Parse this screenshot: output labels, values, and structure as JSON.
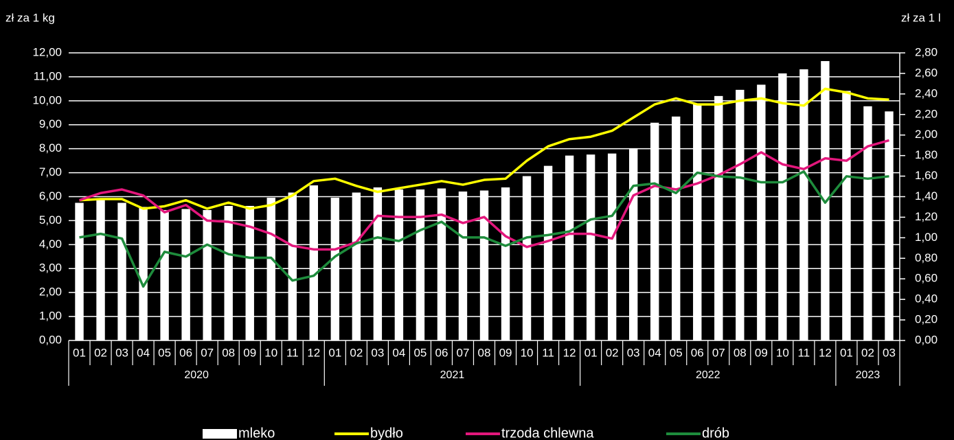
{
  "chart_data": {
    "type": "bar",
    "y_label": "zł za 1 kg",
    "y2_label": "zł za 1 l",
    "categories": [
      "01",
      "02",
      "03",
      "04",
      "05",
      "06",
      "07",
      "08",
      "09",
      "10",
      "11",
      "12",
      "01",
      "02",
      "03",
      "04",
      "05",
      "06",
      "07",
      "08",
      "09",
      "10",
      "11",
      "12",
      "01",
      "02",
      "03",
      "04",
      "05",
      "06",
      "07",
      "08",
      "09",
      "10",
      "11",
      "12",
      "01",
      "02",
      "03"
    ],
    "x_groups": [
      "2020",
      "2021",
      "2022",
      "2023"
    ],
    "ylim": [
      0,
      12
    ],
    "yticks": [
      {
        "value": 0,
        "label": "0,00"
      },
      {
        "value": 1,
        "label": "1,00"
      },
      {
        "value": 2,
        "label": "2,00"
      },
      {
        "value": 3,
        "label": "3,00"
      },
      {
        "value": 4,
        "label": "4,00"
      },
      {
        "value": 5,
        "label": "5,00"
      },
      {
        "value": 6,
        "label": "6,00"
      },
      {
        "value": 7,
        "label": "7,00"
      },
      {
        "value": 8,
        "label": "8,00"
      },
      {
        "value": 9,
        "label": "9,00"
      },
      {
        "value": 10,
        "label": "10,00"
      },
      {
        "value": 11,
        "label": "11,00"
      },
      {
        "value": 12,
        "label": "12,00"
      }
    ],
    "y2lim": [
      0,
      2.8
    ],
    "y2ticks": [
      {
        "value": 0,
        "label": "0,00"
      },
      {
        "value": 0.2,
        "label": "0,20"
      },
      {
        "value": 0.4,
        "label": "0,40"
      },
      {
        "value": 0.6,
        "label": "0,60"
      },
      {
        "value": 0.8,
        "label": "0,80"
      },
      {
        "value": 1,
        "label": "1,00"
      },
      {
        "value": 1.2,
        "label": "1,20"
      },
      {
        "value": 1.4,
        "label": "1,40"
      },
      {
        "value": 1.6,
        "label": "1,60"
      },
      {
        "value": 1.8,
        "label": "1,80"
      },
      {
        "value": 2,
        "label": "2,00"
      },
      {
        "value": 2.2,
        "label": "2,20"
      },
      {
        "value": 2.4,
        "label": "2,40"
      },
      {
        "value": 2.6,
        "label": "2,60"
      },
      {
        "value": 2.8,
        "label": "2,80"
      }
    ],
    "grid": true,
    "series": [
      {
        "name": "mleko",
        "type": "bar",
        "axis": "y2",
        "color": "#ffffff",
        "values": [
          1.34,
          1.38,
          1.34,
          1.3,
          1.27,
          1.28,
          1.27,
          1.31,
          1.31,
          1.39,
          1.44,
          1.51,
          1.39,
          1.44,
          1.49,
          1.47,
          1.47,
          1.48,
          1.45,
          1.46,
          1.49,
          1.6,
          1.7,
          1.8,
          1.81,
          1.82,
          1.87,
          2.12,
          2.18,
          2.3,
          2.38,
          2.44,
          2.49,
          2.6,
          2.64,
          2.72,
          2.43,
          2.28,
          2.23
        ]
      },
      {
        "name": "bydło",
        "type": "line",
        "color": "#ffff00",
        "values": [
          5.85,
          5.9,
          5.9,
          5.5,
          5.6,
          5.85,
          5.5,
          5.75,
          5.5,
          5.65,
          6.05,
          6.65,
          6.75,
          6.45,
          6.2,
          6.35,
          6.5,
          6.65,
          6.5,
          6.7,
          6.75,
          7.5,
          8.1,
          8.4,
          8.5,
          8.75,
          9.3,
          9.85,
          10.1,
          9.85,
          9.85,
          10.0,
          10.1,
          9.9,
          9.8,
          10.5,
          10.35,
          10.1,
          10.05
        ]
      },
      {
        "name": "trzoda chlewna",
        "type": "line",
        "color": "#e3177c",
        "values": [
          5.85,
          6.15,
          6.3,
          6.05,
          5.35,
          5.65,
          5.0,
          4.95,
          4.75,
          4.45,
          3.95,
          3.8,
          3.8,
          4.1,
          5.2,
          5.15,
          5.15,
          5.25,
          4.9,
          5.15,
          4.35,
          3.9,
          4.15,
          4.45,
          4.45,
          4.25,
          6.05,
          6.45,
          6.3,
          6.55,
          6.9,
          7.35,
          7.85,
          7.35,
          7.15,
          7.6,
          7.5,
          8.1,
          8.35
        ]
      },
      {
        "name": "drób",
        "type": "line",
        "color": "#1e8c3c",
        "values": [
          4.3,
          4.45,
          4.25,
          2.25,
          3.7,
          3.5,
          4.0,
          3.6,
          3.45,
          3.45,
          2.5,
          2.7,
          3.5,
          4.05,
          4.3,
          4.15,
          4.6,
          4.95,
          4.3,
          4.3,
          3.95,
          4.3,
          4.4,
          4.55,
          5.05,
          5.2,
          6.45,
          6.55,
          6.15,
          7.0,
          6.85,
          6.8,
          6.6,
          6.6,
          7.05,
          5.75,
          6.85,
          6.75,
          6.85
        ]
      }
    ]
  }
}
